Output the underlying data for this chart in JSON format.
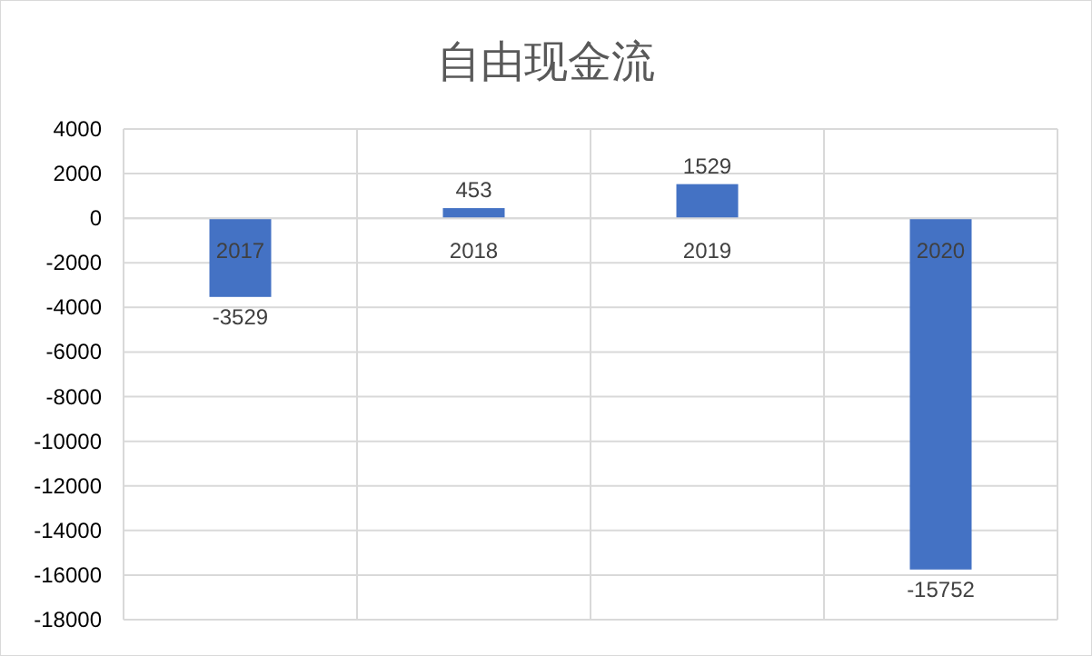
{
  "chart_data": {
    "type": "bar",
    "title": "自由现金流",
    "categories": [
      "2017",
      "2018",
      "2019",
      "2020"
    ],
    "values": [
      -3529,
      453,
      1529,
      -15752
    ],
    "color": "#4472c4",
    "ylim": [
      -18000,
      4000
    ],
    "yticks": [
      -18000,
      -16000,
      -14000,
      -12000,
      -10000,
      -8000,
      -6000,
      -4000,
      -2000,
      0,
      2000,
      4000
    ],
    "grid": true,
    "data_labels": true
  }
}
